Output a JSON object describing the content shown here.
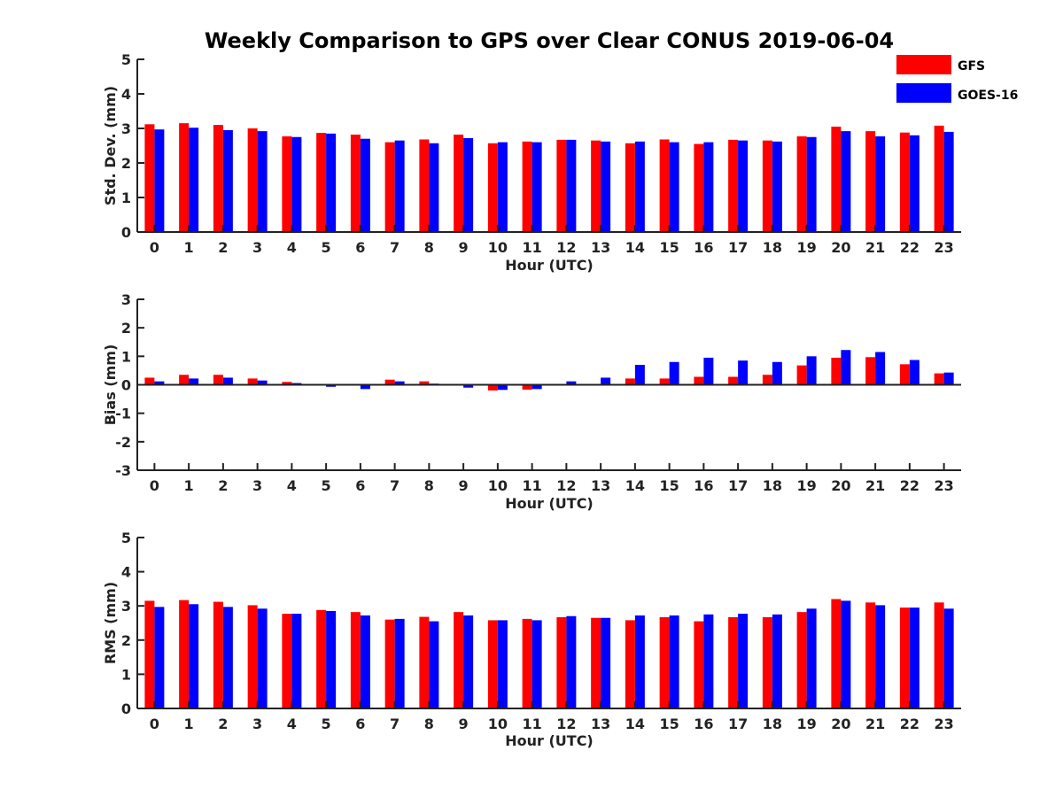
{
  "title": "Weekly Comparison to GPS over Clear CONUS 2019-06-04",
  "colors": {
    "GFS": "#ff0000",
    "GOES-16": "#0000ff",
    "axis": "#222222"
  },
  "legend": {
    "placement": "top-right",
    "items": [
      "GFS",
      "GOES-16"
    ]
  },
  "chart_data": [
    {
      "type": "bar",
      "ylabel": "Std. Dev. (mm)",
      "xlabel": "Hour (UTC)",
      "ylim": [
        0,
        5
      ],
      "yticks": [
        0,
        1,
        2,
        3,
        4,
        5
      ],
      "categories": [
        "0",
        "1",
        "2",
        "3",
        "4",
        "5",
        "6",
        "7",
        "8",
        "9",
        "10",
        "11",
        "12",
        "13",
        "14",
        "15",
        "16",
        "17",
        "18",
        "19",
        "20",
        "21",
        "22",
        "23"
      ],
      "series": [
        {
          "name": "GFS",
          "values": [
            3.12,
            3.15,
            3.1,
            3.0,
            2.77,
            2.87,
            2.82,
            2.6,
            2.68,
            2.82,
            2.57,
            2.62,
            2.67,
            2.65,
            2.57,
            2.68,
            2.55,
            2.67,
            2.65,
            2.77,
            3.05,
            2.92,
            2.88,
            3.08
          ]
        },
        {
          "name": "GOES-16",
          "values": [
            2.97,
            3.02,
            2.95,
            2.92,
            2.75,
            2.85,
            2.7,
            2.65,
            2.57,
            2.72,
            2.6,
            2.6,
            2.67,
            2.62,
            2.62,
            2.6,
            2.6,
            2.65,
            2.62,
            2.75,
            2.92,
            2.77,
            2.8,
            2.9
          ]
        }
      ]
    },
    {
      "type": "bar",
      "ylabel": "Bias (mm)",
      "xlabel": "Hour (UTC)",
      "ylim": [
        -3,
        3
      ],
      "yticks": [
        -3,
        -2,
        -1,
        0,
        1,
        2,
        3
      ],
      "categories": [
        "0",
        "1",
        "2",
        "3",
        "4",
        "5",
        "6",
        "7",
        "8",
        "9",
        "10",
        "11",
        "12",
        "13",
        "14",
        "15",
        "16",
        "17",
        "18",
        "19",
        "20",
        "21",
        "22",
        "23"
      ],
      "series": [
        {
          "name": "GFS",
          "values": [
            0.25,
            0.35,
            0.35,
            0.22,
            0.1,
            0.02,
            0.02,
            0.18,
            0.12,
            0.02,
            -0.2,
            -0.17,
            0.02,
            0.02,
            0.22,
            0.22,
            0.28,
            0.28,
            0.35,
            0.68,
            0.95,
            0.97,
            0.72,
            0.4
          ]
        },
        {
          "name": "GOES-16",
          "values": [
            0.12,
            0.22,
            0.25,
            0.15,
            0.06,
            -0.07,
            -0.15,
            0.12,
            0.04,
            -0.1,
            -0.18,
            -0.15,
            0.12,
            0.25,
            0.7,
            0.8,
            0.95,
            0.85,
            0.8,
            1.0,
            1.22,
            1.15,
            0.87,
            0.43
          ]
        }
      ]
    },
    {
      "type": "bar",
      "ylabel": "RMS (mm)",
      "xlabel": "Hour (UTC)",
      "ylim": [
        0,
        5
      ],
      "yticks": [
        0,
        1,
        2,
        3,
        4,
        5
      ],
      "categories": [
        "0",
        "1",
        "2",
        "3",
        "4",
        "5",
        "6",
        "7",
        "8",
        "9",
        "10",
        "11",
        "12",
        "13",
        "14",
        "15",
        "16",
        "17",
        "18",
        "19",
        "20",
        "21",
        "22",
        "23"
      ],
      "series": [
        {
          "name": "GFS",
          "values": [
            3.15,
            3.17,
            3.12,
            3.02,
            2.77,
            2.88,
            2.82,
            2.6,
            2.68,
            2.82,
            2.58,
            2.62,
            2.67,
            2.65,
            2.58,
            2.67,
            2.55,
            2.67,
            2.67,
            2.82,
            3.2,
            3.1,
            2.95,
            3.1
          ]
        },
        {
          "name": "GOES-16",
          "values": [
            2.97,
            3.05,
            2.97,
            2.92,
            2.77,
            2.85,
            2.72,
            2.62,
            2.55,
            2.72,
            2.58,
            2.58,
            2.7,
            2.65,
            2.72,
            2.72,
            2.75,
            2.77,
            2.75,
            2.92,
            3.15,
            3.02,
            2.95,
            2.92
          ]
        }
      ]
    }
  ]
}
